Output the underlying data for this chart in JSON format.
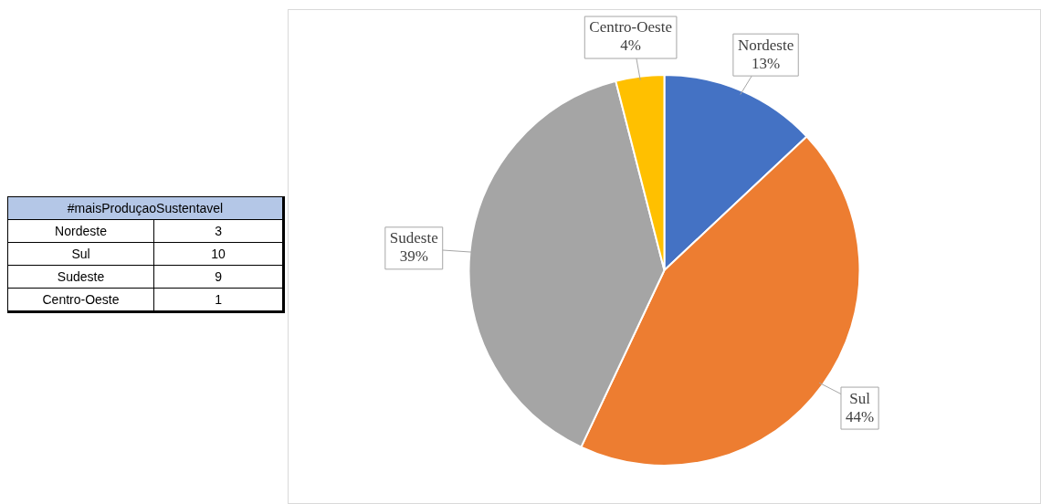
{
  "chart_data": [
    {
      "type": "other",
      "title": "#maisProduçaoSustentavel",
      "categories": [
        "Nordeste",
        "Sul",
        "Sudeste",
        "Centro-Oeste"
      ],
      "values": [
        3,
        10,
        9,
        1
      ],
      "data_labels": true
    },
    {
      "type": "pie",
      "categories": [
        "Nordeste",
        "Sul",
        "Sudeste",
        "Centro-Oeste"
      ],
      "values": [
        13,
        44,
        39,
        4
      ],
      "colors": [
        "#4472c4",
        "#ed7d31",
        "#a5a5a5",
        "#ffc000"
      ],
      "value_labels": [
        "13%",
        "44%",
        "39%",
        "4%"
      ],
      "legend": false
    }
  ]
}
